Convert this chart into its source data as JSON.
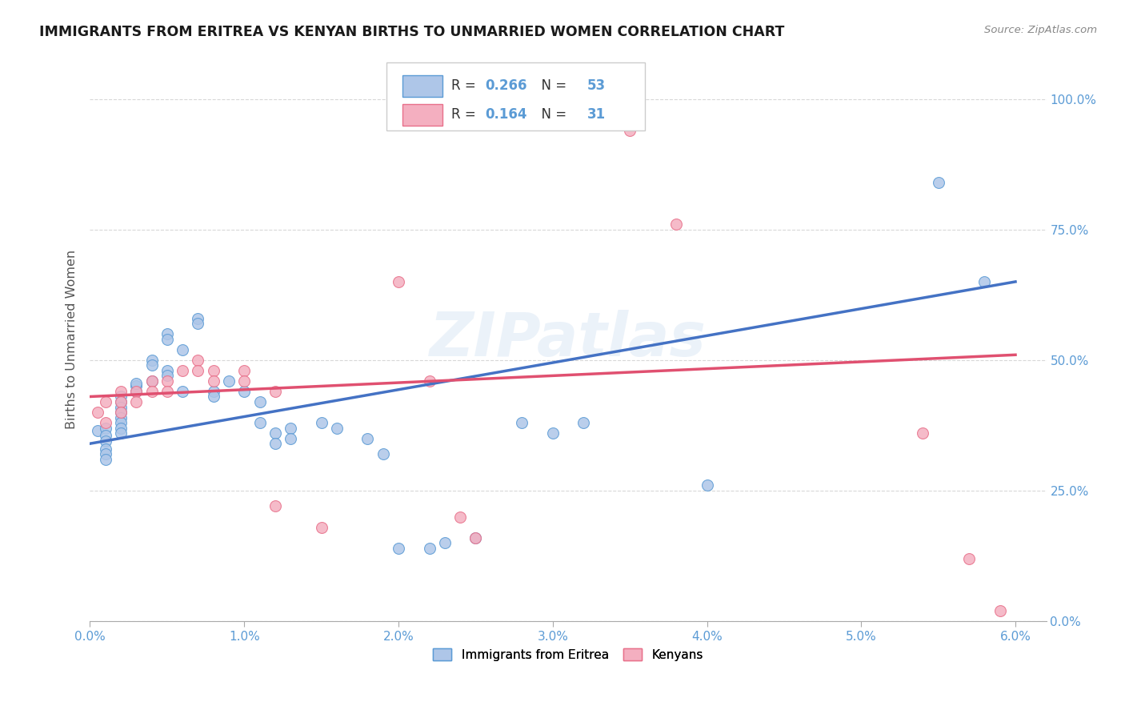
{
  "title": "IMMIGRANTS FROM ERITREA VS KENYAN BIRTHS TO UNMARRIED WOMEN CORRELATION CHART",
  "source": "Source: ZipAtlas.com",
  "ylabel": "Births to Unmarried Women",
  "legend_bottom": [
    "Immigrants from Eritrea",
    "Kenyans"
  ],
  "blue_R": 0.266,
  "blue_N": 53,
  "pink_R": 0.164,
  "pink_N": 31,
  "blue_fill": "#aec6e8",
  "pink_fill": "#f4afc0",
  "blue_edge": "#5b9bd5",
  "pink_edge": "#e8708a",
  "blue_line": "#4472c4",
  "pink_line": "#e05070",
  "watermark": "ZIPatlas",
  "blue_points": [
    [
      0.0005,
      0.365
    ],
    [
      0.001,
      0.37
    ],
    [
      0.001,
      0.355
    ],
    [
      0.001,
      0.345
    ],
    [
      0.001,
      0.33
    ],
    [
      0.001,
      0.32
    ],
    [
      0.001,
      0.31
    ],
    [
      0.002,
      0.43
    ],
    [
      0.002,
      0.42
    ],
    [
      0.002,
      0.41
    ],
    [
      0.002,
      0.4
    ],
    [
      0.002,
      0.39
    ],
    [
      0.002,
      0.38
    ],
    [
      0.002,
      0.37
    ],
    [
      0.002,
      0.36
    ],
    [
      0.003,
      0.45
    ],
    [
      0.003,
      0.44
    ],
    [
      0.003,
      0.455
    ],
    [
      0.004,
      0.5
    ],
    [
      0.004,
      0.49
    ],
    [
      0.004,
      0.46
    ],
    [
      0.005,
      0.55
    ],
    [
      0.005,
      0.54
    ],
    [
      0.005,
      0.48
    ],
    [
      0.005,
      0.47
    ],
    [
      0.006,
      0.52
    ],
    [
      0.006,
      0.44
    ],
    [
      0.007,
      0.58
    ],
    [
      0.007,
      0.57
    ],
    [
      0.008,
      0.44
    ],
    [
      0.008,
      0.43
    ],
    [
      0.009,
      0.46
    ],
    [
      0.01,
      0.44
    ],
    [
      0.011,
      0.42
    ],
    [
      0.011,
      0.38
    ],
    [
      0.012,
      0.36
    ],
    [
      0.012,
      0.34
    ],
    [
      0.013,
      0.37
    ],
    [
      0.013,
      0.35
    ],
    [
      0.015,
      0.38
    ],
    [
      0.016,
      0.37
    ],
    [
      0.018,
      0.35
    ],
    [
      0.019,
      0.32
    ],
    [
      0.02,
      0.14
    ],
    [
      0.022,
      0.14
    ],
    [
      0.023,
      0.15
    ],
    [
      0.025,
      0.16
    ],
    [
      0.028,
      0.38
    ],
    [
      0.03,
      0.36
    ],
    [
      0.032,
      0.38
    ],
    [
      0.04,
      0.26
    ],
    [
      0.055,
      0.84
    ],
    [
      0.058,
      0.65
    ]
  ],
  "pink_points": [
    [
      0.0005,
      0.4
    ],
    [
      0.001,
      0.42
    ],
    [
      0.001,
      0.38
    ],
    [
      0.002,
      0.44
    ],
    [
      0.002,
      0.42
    ],
    [
      0.002,
      0.4
    ],
    [
      0.003,
      0.44
    ],
    [
      0.003,
      0.42
    ],
    [
      0.004,
      0.46
    ],
    [
      0.004,
      0.44
    ],
    [
      0.005,
      0.46
    ],
    [
      0.005,
      0.44
    ],
    [
      0.006,
      0.48
    ],
    [
      0.007,
      0.5
    ],
    [
      0.007,
      0.48
    ],
    [
      0.008,
      0.48
    ],
    [
      0.008,
      0.46
    ],
    [
      0.01,
      0.48
    ],
    [
      0.01,
      0.46
    ],
    [
      0.012,
      0.44
    ],
    [
      0.012,
      0.22
    ],
    [
      0.015,
      0.18
    ],
    [
      0.02,
      0.65
    ],
    [
      0.022,
      0.46
    ],
    [
      0.024,
      0.2
    ],
    [
      0.025,
      0.16
    ],
    [
      0.035,
      0.94
    ],
    [
      0.038,
      0.76
    ],
    [
      0.054,
      0.36
    ],
    [
      0.057,
      0.12
    ],
    [
      0.059,
      0.02
    ]
  ],
  "blue_trend": [
    0.0,
    0.06,
    0.34,
    0.65
  ],
  "pink_trend": [
    0.0,
    0.06,
    0.43,
    0.51
  ]
}
